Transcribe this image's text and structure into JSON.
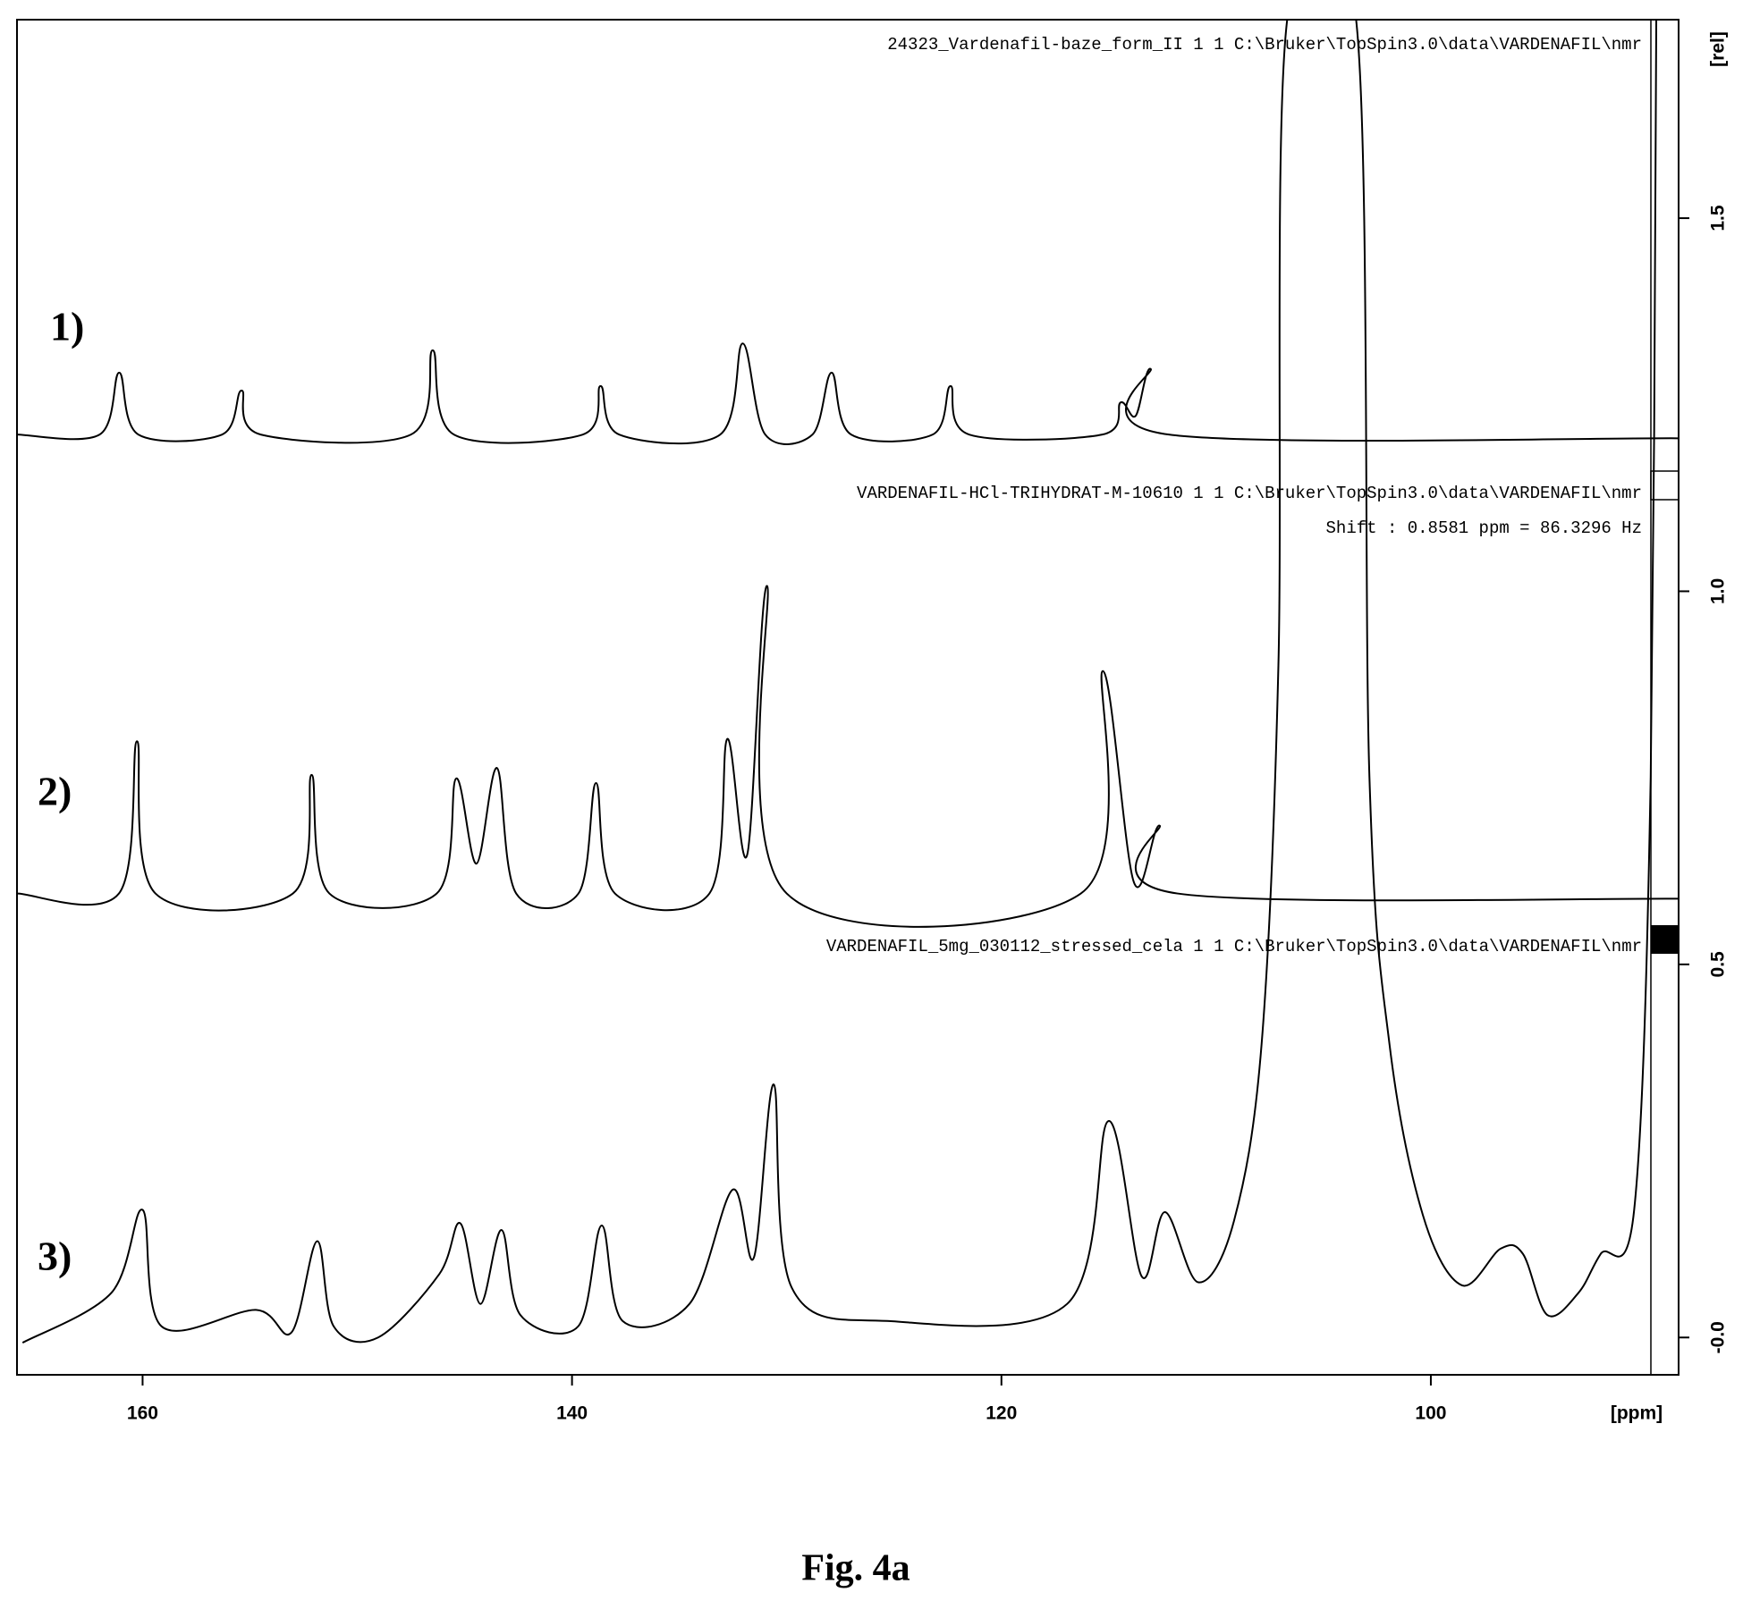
{
  "chart_data": {
    "type": "line",
    "x_label": "[ppm]",
    "y_label": "[rel]",
    "caption": "Fig. 4a",
    "xlim": [
      165.85,
      88.46
    ],
    "ylim": [
      -0.05,
      1.766
    ],
    "xticks": [
      160,
      140,
      120,
      100
    ],
    "yticks": [
      {
        "value": 0,
        "label": "-0.0"
      },
      0.5,
      {
        "value": 1,
        "label": "1.0"
      },
      1.5
    ],
    "color": "#000000",
    "annotations": [
      "Shift : 0.8581 ppm = 86.3296 Hz"
    ],
    "series": [
      {
        "name": "1)",
        "title": "24323_Vardenafil-baze_form_II  1  1  C:\\Bruker\\TopSpin3.0\\data\\VARDENAFIL\\nmr",
        "x": [
          165.85,
          162.0,
          161.09,
          160.2,
          156.3,
          155.39,
          154.5,
          147.5,
          146.49,
          145.5,
          139.5,
          138.67,
          137.8,
          133.1,
          132.05,
          131.0,
          128.8,
          127.91,
          127.0,
          123.2,
          122.37,
          121.5,
          115.3,
          114.45,
          113.75,
          113.05,
          112.2,
          88.46
        ],
        "values": [
          1.21,
          1.21,
          1.293,
          1.21,
          1.21,
          1.269,
          1.21,
          1.21,
          1.323,
          1.21,
          1.21,
          1.275,
          1.21,
          1.21,
          1.332,
          1.21,
          1.21,
          1.293,
          1.21,
          1.21,
          1.275,
          1.21,
          1.21,
          1.253,
          1.235,
          1.298,
          1.21,
          1.205
        ]
      },
      {
        "name": "2)",
        "title": "VARDENAFIL-HCl-TRIHYDRAT-M-10610  1  1  C:\\Bruker\\TopSpin3.0\\data\\VARDENAFIL\\nmr",
        "x": [
          165.85,
          161.1,
          160.26,
          159.4,
          153.0,
          152.13,
          151.3,
          146.3,
          145.4,
          144.45,
          143.49,
          142.6,
          139.7,
          138.88,
          138.0,
          133.6,
          132.77,
          131.84,
          130.91,
          130.0,
          116.3,
          115.28,
          113.83,
          112.64,
          111.8,
          88.46
        ],
        "values": [
          0.595,
          0.595,
          0.799,
          0.595,
          0.595,
          0.754,
          0.595,
          0.595,
          0.749,
          0.635,
          0.763,
          0.595,
          0.595,
          0.743,
          0.595,
          0.595,
          0.802,
          0.647,
          1.007,
          0.595,
          0.595,
          0.893,
          0.61,
          0.686,
          0.595,
          0.588
        ]
      },
      {
        "name": "3)",
        "title": "VARDENAFIL_5mg_030112_stressed_cela  1  1  C:\\Bruker\\TopSpin3.0\\data\\VARDENAFIL\\nmr",
        "x": [
          165.59,
          161.45,
          160.0,
          159.12,
          154.72,
          153.06,
          151.87,
          151.1,
          149.03,
          146.18,
          145.2,
          144.27,
          143.28,
          142.4,
          139.71,
          138.62,
          137.64,
          134.53,
          132.52,
          131.53,
          130.6,
          129.77,
          125.22,
          116.94,
          115.02,
          113.47,
          112.38,
          110.83,
          109.17,
          107.88,
          107.1,
          106.69,
          103.48,
          102.86,
          101.93,
          100.37,
          98.56,
          96.75,
          95.71,
          94.57,
          93.12,
          92.09,
          90.53,
          89.76,
          89.5
        ],
        "values": [
          -0.007,
          0.06,
          0.171,
          0.015,
          0.037,
          0.007,
          0.129,
          0.015,
          0.0,
          0.085,
          0.153,
          0.045,
          0.144,
          0.03,
          0.015,
          0.15,
          0.022,
          0.045,
          0.198,
          0.107,
          0.339,
          0.067,
          0.022,
          0.045,
          0.29,
          0.082,
          0.168,
          0.074,
          0.156,
          0.394,
          0.9,
          1.766,
          1.766,
          0.751,
          0.394,
          0.164,
          0.07,
          0.119,
          0.112,
          0.03,
          0.06,
          0.112,
          0.171,
          0.751,
          1.766
        ]
      }
    ]
  }
}
